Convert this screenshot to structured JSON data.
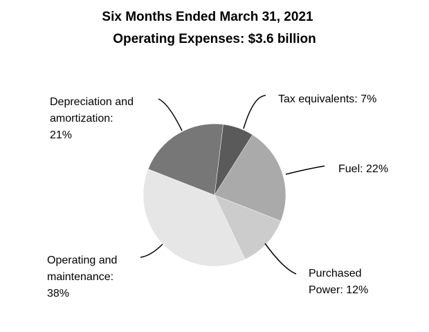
{
  "chart_data": {
    "type": "pie",
    "title": "Six Months Ended March 31, 2021",
    "subtitle": "Operating Expenses: $3.6 billion",
    "slices": [
      {
        "name": "Tax equivalents",
        "value": 7,
        "label_lines": [
          "Tax equivalents: 7%"
        ],
        "color": "#5a5a5a"
      },
      {
        "name": "Fuel",
        "value": 22,
        "label_lines": [
          "Fuel: 22%"
        ],
        "color": "#aaaaaa"
      },
      {
        "name": "Purchased Power",
        "value": 12,
        "label_lines": [
          "Purchased",
          "Power: 12%"
        ],
        "color": "#cccccc"
      },
      {
        "name": "Operating and maintenance",
        "value": 38,
        "label_lines": [
          "Operating and",
          "maintenance:",
          "38%"
        ],
        "color": "#e6e6e6"
      },
      {
        "name": "Depreciation and amortization",
        "value": 21,
        "label_lines": [
          "Depreciation and",
          "amortization:",
          "21%"
        ],
        "color": "#777777"
      }
    ]
  }
}
